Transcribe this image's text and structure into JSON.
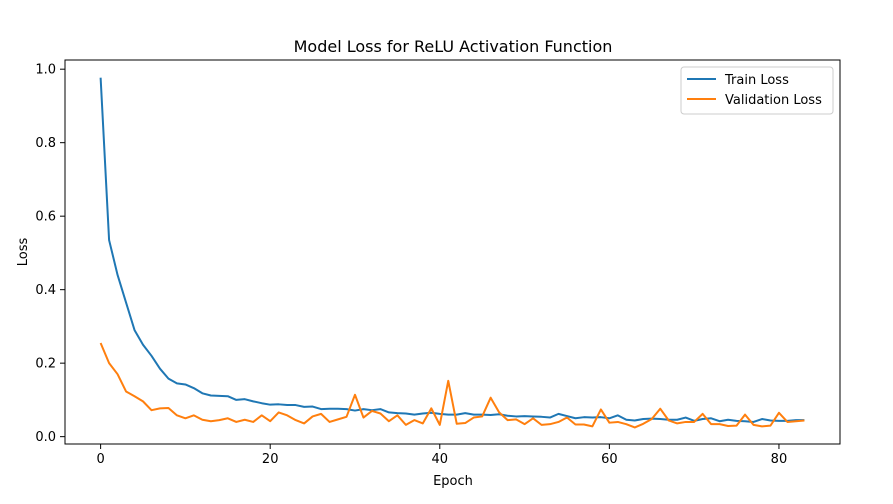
{
  "chart_data": {
    "type": "line",
    "title": "Model Loss for ReLU Activation Function",
    "xlabel": "Epoch",
    "ylabel": "Loss",
    "xlim": [
      -4.2,
      87.2
    ],
    "ylim": [
      -0.02,
      1.025
    ],
    "xticks": [
      0,
      20,
      40,
      60,
      80
    ],
    "yticks": [
      0.0,
      0.2,
      0.4,
      0.6,
      0.8,
      1.0
    ],
    "grid": false,
    "legend": "top-right",
    "x": [
      0,
      1,
      2,
      3,
      4,
      5,
      6,
      7,
      8,
      9,
      10,
      11,
      12,
      13,
      14,
      15,
      16,
      17,
      18,
      19,
      20,
      21,
      22,
      23,
      24,
      25,
      26,
      27,
      28,
      29,
      30,
      31,
      32,
      33,
      34,
      35,
      36,
      37,
      38,
      39,
      40,
      41,
      42,
      43,
      44,
      45,
      46,
      47,
      48,
      49,
      50,
      51,
      52,
      53,
      54,
      55,
      56,
      57,
      58,
      59,
      60,
      61,
      62,
      63,
      64,
      65,
      66,
      67,
      68,
      69,
      70,
      71,
      72,
      73,
      74,
      75,
      76,
      77,
      78,
      79,
      80,
      81,
      82,
      83
    ],
    "series": [
      {
        "name": "Train Loss",
        "color": "#1f77b4",
        "values": [
          0.977,
          0.535,
          0.44,
          0.365,
          0.29,
          0.25,
          0.22,
          0.185,
          0.158,
          0.145,
          0.142,
          0.132,
          0.118,
          0.112,
          0.111,
          0.11,
          0.1,
          0.102,
          0.096,
          0.091,
          0.087,
          0.088,
          0.086,
          0.086,
          0.081,
          0.082,
          0.075,
          0.076,
          0.076,
          0.075,
          0.071,
          0.075,
          0.072,
          0.075,
          0.066,
          0.064,
          0.063,
          0.06,
          0.063,
          0.065,
          0.062,
          0.06,
          0.06,
          0.064,
          0.06,
          0.06,
          0.059,
          0.061,
          0.057,
          0.055,
          0.056,
          0.055,
          0.054,
          0.052,
          0.062,
          0.056,
          0.05,
          0.053,
          0.052,
          0.053,
          0.05,
          0.058,
          0.046,
          0.044,
          0.048,
          0.049,
          0.048,
          0.046,
          0.046,
          0.052,
          0.043,
          0.048,
          0.05,
          0.042,
          0.046,
          0.043,
          0.042,
          0.04,
          0.048,
          0.044,
          0.043,
          0.043,
          0.045,
          0.045
        ]
      },
      {
        "name": "Validation Loss",
        "color": "#ff7f0e",
        "values": [
          0.255,
          0.2,
          0.17,
          0.123,
          0.11,
          0.096,
          0.072,
          0.077,
          0.078,
          0.058,
          0.05,
          0.058,
          0.046,
          0.042,
          0.045,
          0.05,
          0.04,
          0.046,
          0.04,
          0.058,
          0.042,
          0.066,
          0.058,
          0.045,
          0.036,
          0.055,
          0.062,
          0.04,
          0.047,
          0.054,
          0.114,
          0.052,
          0.07,
          0.063,
          0.042,
          0.058,
          0.032,
          0.045,
          0.036,
          0.077,
          0.032,
          0.152,
          0.035,
          0.037,
          0.052,
          0.055,
          0.106,
          0.066,
          0.045,
          0.047,
          0.034,
          0.05,
          0.032,
          0.034,
          0.04,
          0.052,
          0.033,
          0.033,
          0.028,
          0.074,
          0.038,
          0.04,
          0.034,
          0.025,
          0.035,
          0.048,
          0.076,
          0.044,
          0.036,
          0.04,
          0.04,
          0.062,
          0.034,
          0.034,
          0.029,
          0.03,
          0.06,
          0.032,
          0.028,
          0.03,
          0.065,
          0.04,
          0.042,
          0.044
        ]
      }
    ]
  }
}
